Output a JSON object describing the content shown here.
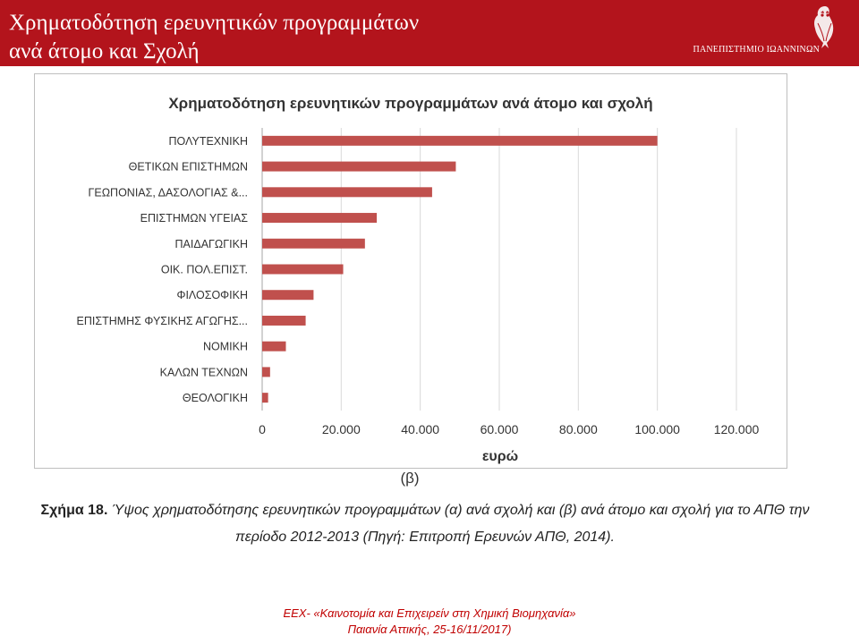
{
  "header": {
    "title_line1": "Χρηματοδότηση ερευνητικών προγραμμάτων",
    "title_line2": "ανά άτομο και Σχολή",
    "university": "ΠΑΝΕΠΙΣΤΗΜΙΟ ΙΩΑΝΝΙΝΩΝ",
    "logo_icon": "owl-emblem-icon"
  },
  "chart_data": {
    "type": "bar",
    "orientation": "horizontal",
    "title": "Χρηματοδότηση ερευνητικών προγραμμάτων ανά άτομο και σχολή",
    "xlabel": "ευρώ",
    "ylabel": "",
    "xlim": [
      0,
      120000
    ],
    "xticks": [
      0,
      20000,
      40000,
      60000,
      80000,
      100000,
      120000
    ],
    "xtick_labels": [
      "0",
      "20.000",
      "40.000",
      "60.000",
      "80.000",
      "100.000",
      "120.000"
    ],
    "grid": true,
    "bar_color": "#c0504d",
    "categories": [
      "ΠΟΛΥΤΕΧΝΙΚΗ",
      "ΘΕΤΙΚΩΝ ΕΠΙΣΤΗΜΩΝ",
      "ΓΕΩΠΟΝΙΑΣ, ΔΑΣΟΛΟΓΙΑΣ &...",
      "ΕΠΙΣΤΗΜΩΝ ΥΓΕΙΑΣ",
      "ΠΑΙΔΑΓΩΓΙΚΗ",
      "ΟΙΚ. ΠΟΛ.ΕΠΙΣΤ.",
      "ΦΙΛΟΣΟΦΙΚΗ",
      "ΕΠΙΣΤΗΜΗΣ ΦΥΣΙΚΗΣ ΑΓΩΓΗΣ...",
      "ΝΟΜΙΚΗ",
      "ΚΑΛΩΝ ΤΕΧΝΩΝ",
      "ΘΕΟΛΟΓΙΚΗ"
    ],
    "values": [
      100000,
      49000,
      43000,
      29000,
      26000,
      20500,
      13000,
      11000,
      6000,
      2000,
      1500
    ]
  },
  "panel_label": "(β)",
  "caption": {
    "label": "Σχήμα 18.",
    "text": " Ύψος χρηματοδότησης ερευνητικών προγραμμάτων (α) ανά σχολή και (β) ανά άτομο και σχολή για το ΑΠΘ την περίοδο 2012-2013 (Πηγή: Επιτροπή Ερευνών ΑΠΘ, 2014)."
  },
  "footer": {
    "line1": "ΕΕΧ- «Καινοτομία και Επιχειρείν στη Χημική Βιομηχανία»",
    "line2": "Παιανία Αττικής, 25-16/11/2017)"
  }
}
